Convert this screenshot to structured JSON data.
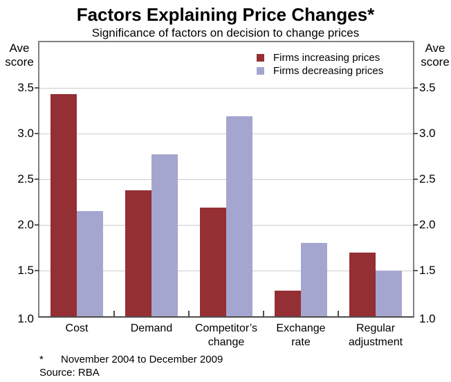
{
  "header": {
    "title": "Factors Explaining Price Changes*",
    "subtitle": "Significance of factors on decision to change prices"
  },
  "chart_data": {
    "type": "bar",
    "categories": [
      "Cost",
      "Demand",
      "Competitor’s change",
      "Exchange rate",
      "Regular adjustment"
    ],
    "category_labels": [
      "Cost",
      "Demand",
      "Competitor’s\nchange",
      "Exchange\nrate",
      "Regular\nadjustment"
    ],
    "series": [
      {
        "name": "Firms increasing prices",
        "color": "#942f34",
        "values": [
          3.43,
          2.38,
          2.19,
          1.28,
          1.7
        ]
      },
      {
        "name": "Firms decreasing prices",
        "color": "#a5a6cf",
        "values": [
          2.15,
          2.77,
          3.19,
          1.8,
          1.5
        ]
      }
    ],
    "ylabel_left": "Ave score",
    "ylabel_right": "Ave score",
    "yticks": [
      1.0,
      1.5,
      2.0,
      2.5,
      3.0,
      3.5
    ],
    "ytick_format": "one-decimal",
    "ylim": [
      1.0,
      4.0
    ],
    "grid": true,
    "legend_position": "top-right",
    "colors": {
      "gridline": "#cccccc",
      "frame": "#7f7f7f",
      "axis": "#4d4d4d"
    }
  },
  "footnotes": {
    "asterisk": "*",
    "note": "November 2004 to December 2009",
    "source": "Source: RBA"
  }
}
